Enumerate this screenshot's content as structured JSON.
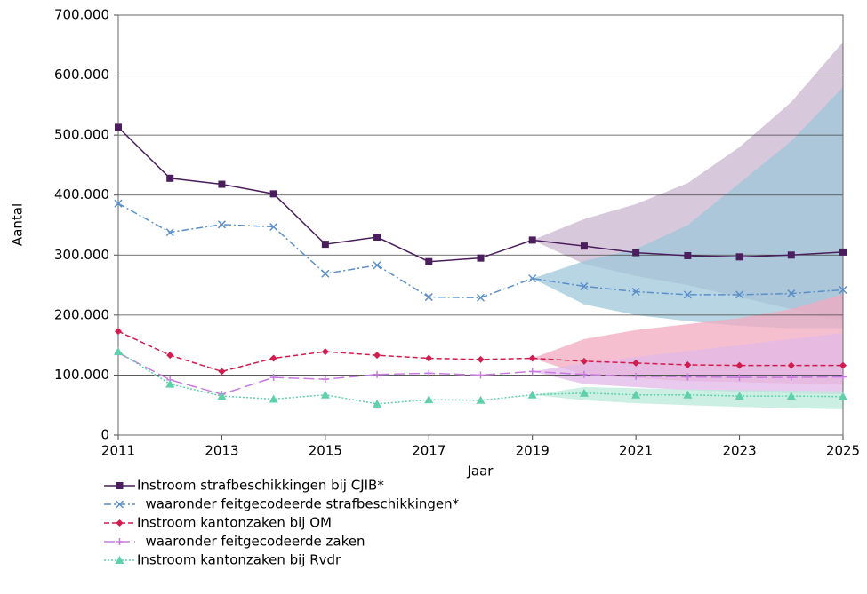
{
  "chart_data": {
    "type": "line",
    "xlabel": "Jaar",
    "ylabel": "Aantal",
    "x": [
      2011,
      2012,
      2013,
      2014,
      2015,
      2016,
      2017,
      2018,
      2019,
      2020,
      2021,
      2022,
      2023,
      2024,
      2025
    ],
    "xlim": [
      2011,
      2025
    ],
    "xticks": [
      2011,
      2013,
      2015,
      2017,
      2019,
      2021,
      2023,
      2025
    ],
    "ylim": [
      0,
      700000
    ],
    "yticks": [
      0,
      {
        "value": 100000,
        "label": "100.000"
      },
      {
        "value": 200000,
        "label": "200.000"
      },
      {
        "value": 300000,
        "label": "300.000"
      },
      {
        "value": 400000,
        "label": "400.000"
      },
      {
        "value": 500000,
        "label": "500.000"
      },
      {
        "value": 600000,
        "label": "600.000"
      },
      {
        "value": 700000,
        "label": "700.000"
      }
    ],
    "grid": true,
    "legend": "bottom",
    "series": [
      {
        "name": "Instroom strafbeschikkingen bij CJIB*",
        "color": "#4a1d5c",
        "marker": "square",
        "dash": "solid",
        "values": [
          513000,
          428000,
          418000,
          402000,
          318000,
          330000,
          289000,
          295000,
          325000,
          315000,
          304000,
          299000,
          297000,
          300000,
          305000
        ]
      },
      {
        "name": "  waaronder feitgecodeerde strafbeschikkingen*",
        "color": "#5b8fc9",
        "marker": "x",
        "dash": "dashdot",
        "values": [
          386000,
          338000,
          351000,
          347000,
          269000,
          283000,
          230000,
          229000,
          261000,
          248000,
          239000,
          234000,
          234000,
          236000,
          242000
        ]
      },
      {
        "name": "Instroom kantonzaken bij OM",
        "color": "#d01c4e",
        "marker": "diamond",
        "dash": "dashed",
        "values": [
          173000,
          133000,
          106000,
          128000,
          139000,
          133000,
          128000,
          126000,
          128000,
          123000,
          120000,
          117000,
          116000,
          116000,
          116000
        ]
      },
      {
        "name": "  waaronder feitgecodeerde zaken",
        "color": "#c77be0",
        "marker": "plus",
        "dash": "longdash",
        "values": [
          137000,
          92000,
          68000,
          96000,
          93000,
          101000,
          103000,
          100000,
          106000,
          101000,
          98000,
          97000,
          96000,
          96000,
          97000
        ]
      },
      {
        "name": "Instroom kantonzaken bij Rvdr",
        "color": "#5fd0aa",
        "marker": "triangle",
        "dash": "dotted",
        "values": [
          139000,
          85000,
          65000,
          60000,
          67000,
          52000,
          59000,
          58000,
          67000,
          70000,
          67000,
          67000,
          65000,
          65000,
          64000
        ]
      }
    ],
    "bands": [
      {
        "color": "#c9b5cf",
        "x": [
          2019,
          2020,
          2021,
          2022,
          2023,
          2024,
          2025
        ],
        "upper": [
          325000,
          360000,
          385000,
          420000,
          480000,
          555000,
          655000
        ],
        "lower": [
          325000,
          285000,
          265000,
          250000,
          230000,
          210000,
          190000
        ]
      },
      {
        "color": "#9fc7da",
        "x": [
          2019,
          2020,
          2021,
          2022,
          2023,
          2024,
          2025
        ],
        "upper": [
          261000,
          290000,
          310000,
          350000,
          420000,
          490000,
          580000
        ],
        "lower": [
          261000,
          218000,
          200000,
          190000,
          182000,
          178000,
          178000
        ]
      },
      {
        "color": "#f3a9c0",
        "x": [
          2019,
          2020,
          2021,
          2022,
          2023,
          2024,
          2025
        ],
        "upper": [
          128000,
          160000,
          175000,
          185000,
          195000,
          210000,
          235000
        ],
        "lower": [
          128000,
          100000,
          95000,
          90000,
          88000,
          86000,
          85000
        ]
      },
      {
        "color": "#e2b8e8",
        "x": [
          2019,
          2020,
          2021,
          2022,
          2023,
          2024,
          2025
        ],
        "upper": [
          106000,
          120000,
          130000,
          140000,
          150000,
          160000,
          170000
        ],
        "lower": [
          106000,
          85000,
          80000,
          75000,
          72000,
          70000,
          68000
        ]
      },
      {
        "color": "#b9ead9",
        "x": [
          2019,
          2020,
          2021,
          2022,
          2023,
          2024,
          2025
        ],
        "upper": [
          67000,
          80000,
          78000,
          76000,
          75000,
          74000,
          73000
        ],
        "lower": [
          67000,
          58000,
          53000,
          50000,
          47000,
          45000,
          43000
        ]
      }
    ]
  }
}
